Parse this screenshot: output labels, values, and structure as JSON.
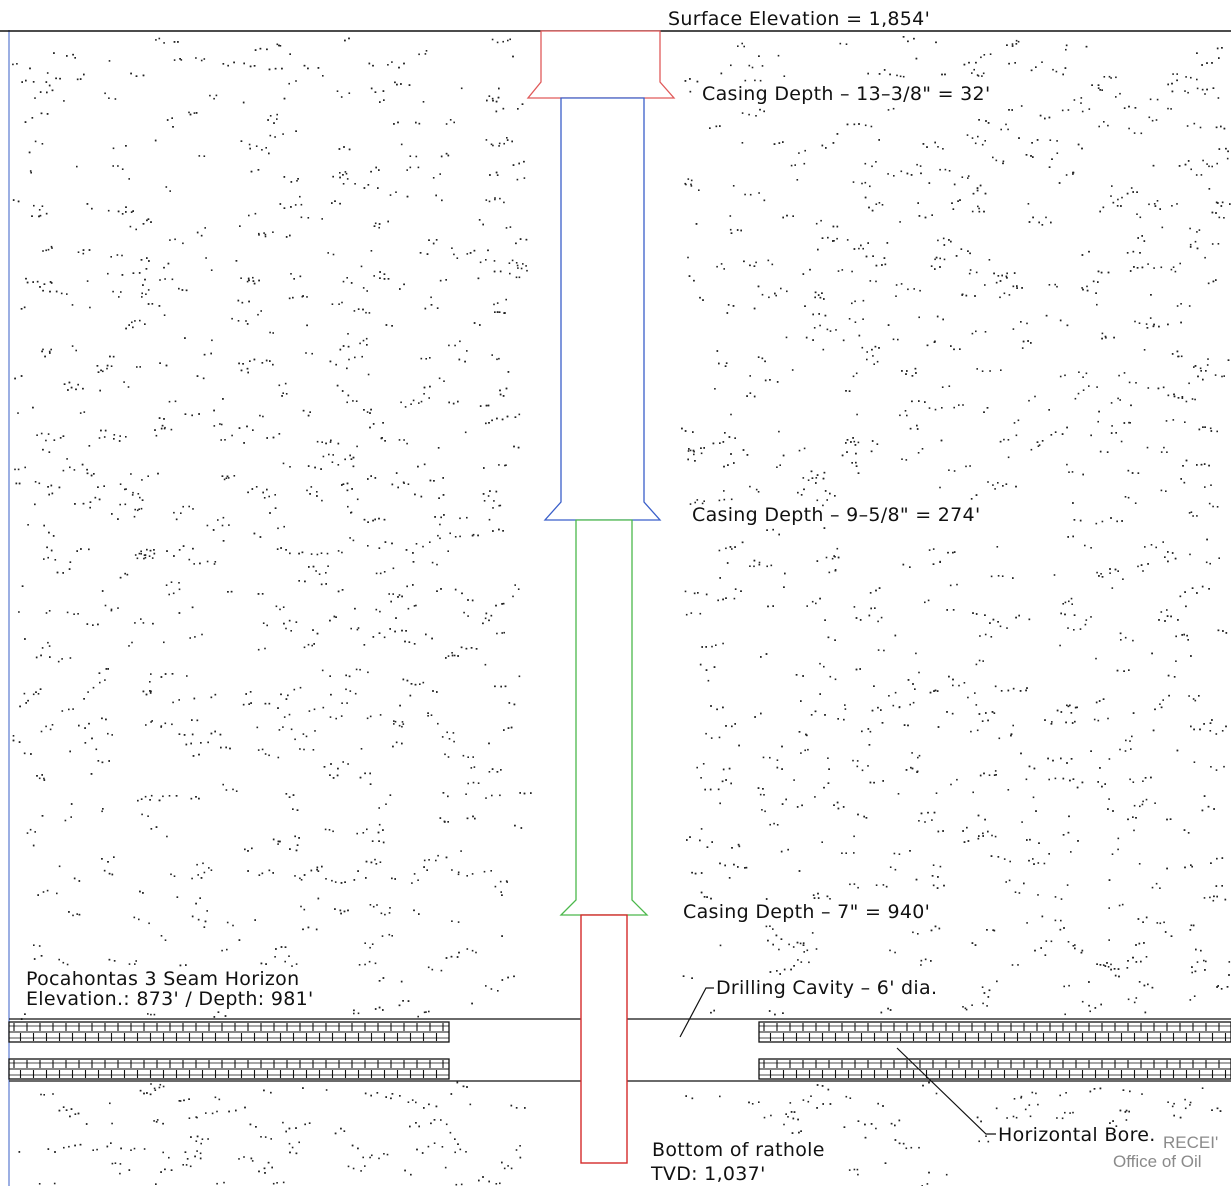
{
  "labels": {
    "surface_elevation": "Surface Elevation = 1,854'",
    "casing_1": "Casing Depth – 13–3/8\" = 32'",
    "casing_2": "Casing Depth – 9–5/8\" = 274'",
    "casing_3": "Casing Depth – 7\" = 940'",
    "seam_name": "Pocahontas 3 Seam Horizon",
    "seam_elevation": "Elevation.: 873' / Depth: 981'",
    "drilling_cavity": "Drilling Cavity – 6' dia.",
    "horizontal_bore": "Horizontal Bore.",
    "bottom_rathole": "Bottom of rathole",
    "tvd": "TVD: 1,037'",
    "stamp_line1": "RECEI'",
    "stamp_line2": "Office of Oil"
  },
  "colors": {
    "line": "#111111",
    "casing_13_3_8": "#e05a5a",
    "casing_9_5_8": "#3a5fc9",
    "casing_7": "#4cb84c",
    "rathole": "#d42a2a",
    "frame_left": "#5a7ad0"
  }
}
